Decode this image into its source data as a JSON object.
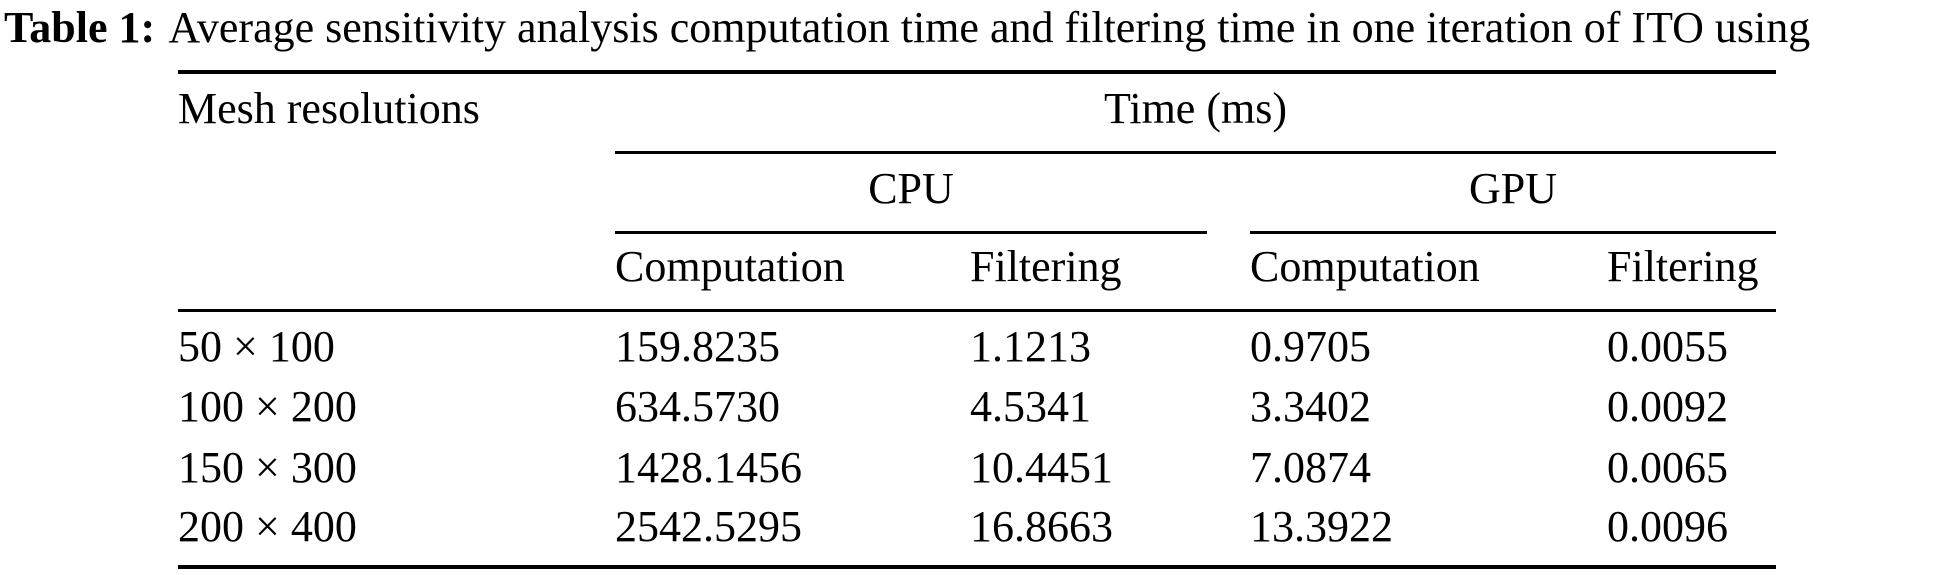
{
  "caption": {
    "label": "Table 1:",
    "text": "Average sensitivity analysis computation time and filtering time in one iteration of ITO using"
  },
  "table": {
    "headers": {
      "mesh": "Mesh resolutions",
      "time": "Time (ms)",
      "cpu": "CPU",
      "gpu": "GPU",
      "computation": "Computation",
      "filtering": "Filtering"
    },
    "rows": [
      {
        "mesh": "50 × 100",
        "cpu_computation": "159.8235",
        "cpu_filtering": "1.1213",
        "gpu_computation": "0.9705",
        "gpu_filtering": "0.0055"
      },
      {
        "mesh": "100 × 200",
        "cpu_computation": "634.5730",
        "cpu_filtering": "4.5341",
        "gpu_computation": "3.3402",
        "gpu_filtering": "0.0092"
      },
      {
        "mesh": "150 × 300",
        "cpu_computation": "1428.1456",
        "cpu_filtering": "10.4451",
        "gpu_computation": "7.0874",
        "gpu_filtering": "0.0065"
      },
      {
        "mesh": "200 × 400",
        "cpu_computation": "2542.5295",
        "cpu_filtering": "16.8663",
        "gpu_computation": "13.3922",
        "gpu_filtering": "0.0096"
      }
    ],
    "colors": {
      "text": "#000000",
      "background": "#ffffff",
      "rule": "#000000"
    }
  }
}
